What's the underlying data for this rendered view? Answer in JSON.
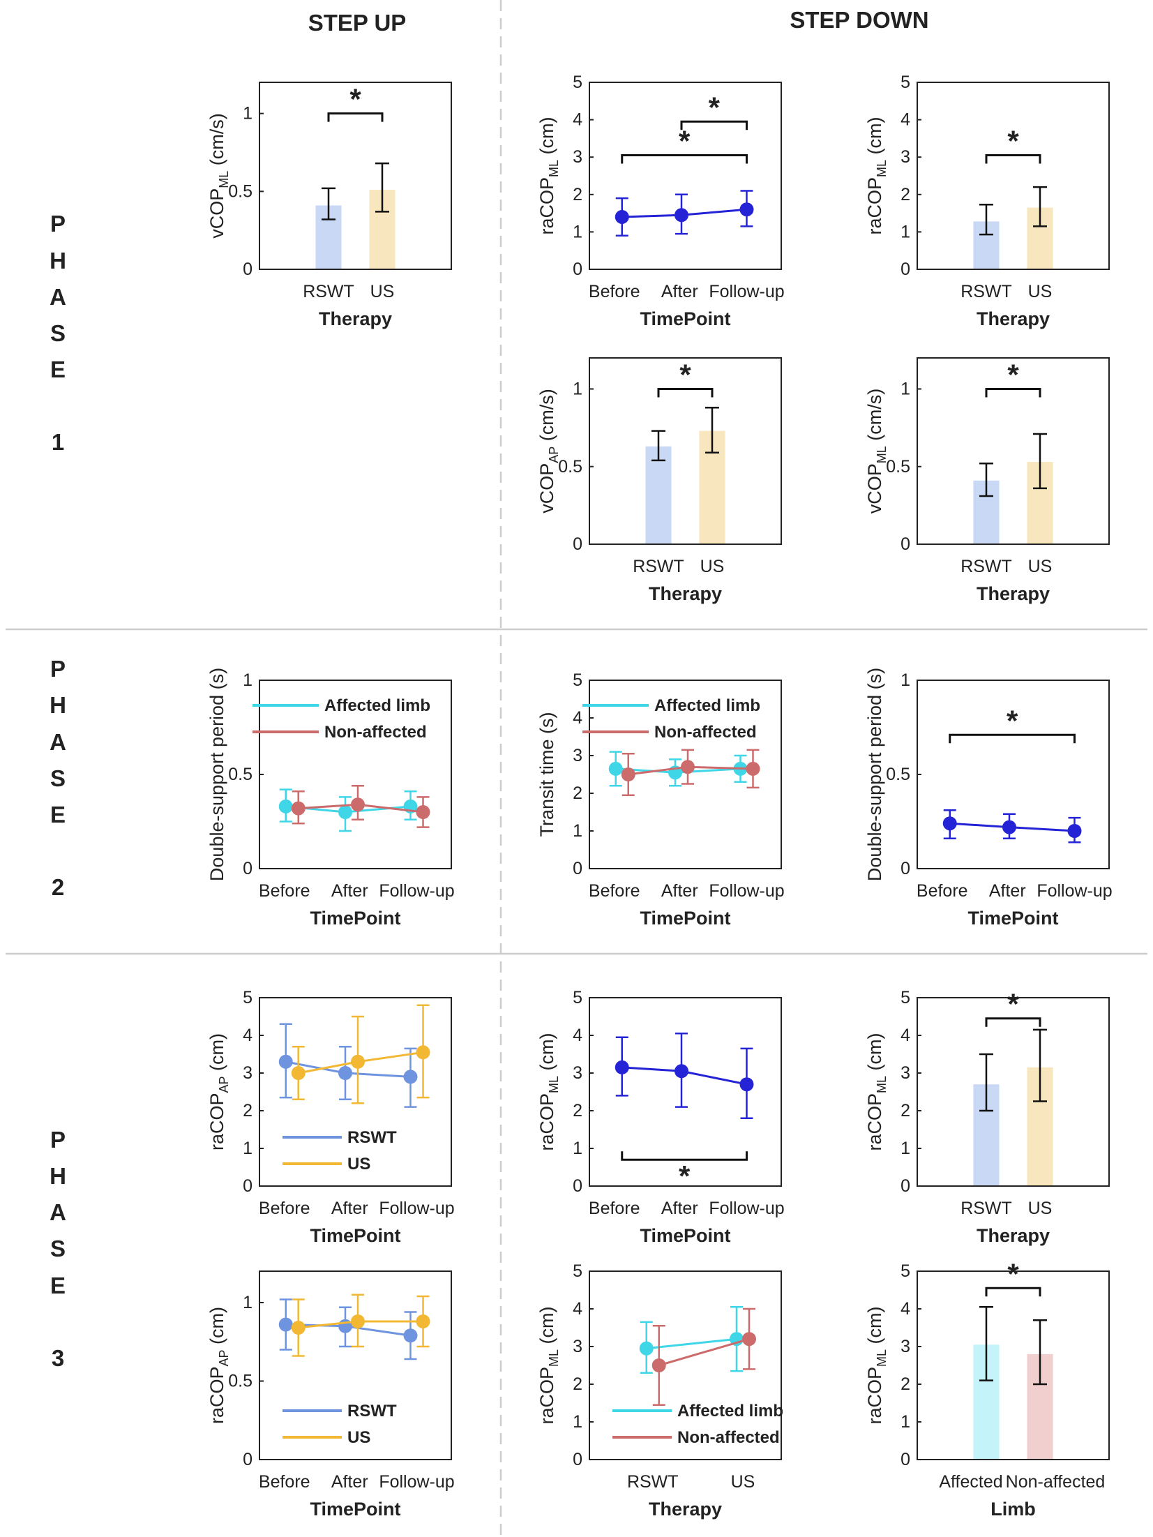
{
  "headers": {
    "step_up": "STEP UP",
    "step_down": "STEP DOWN"
  },
  "phases": [
    {
      "letters": [
        "P",
        "H",
        "A",
        "S",
        "E"
      ],
      "number": "1"
    },
    {
      "letters": [
        "P",
        "H",
        "A",
        "S",
        "E"
      ],
      "number": "2"
    },
    {
      "letters": [
        "P",
        "H",
        "A",
        "S",
        "E"
      ],
      "number": "3"
    }
  ],
  "colors": {
    "rswt_bar": "#c9d9f5",
    "us_bar": "#f8e6be",
    "affected_bar": "#c4f4f9",
    "nonaffected_bar": "#f2cfcf",
    "dark_blue": "#2424d6",
    "cyan": "#3fd6e8",
    "red": "#cc6b6b",
    "light_blue": "#6e94e0",
    "gold": "#f2b833",
    "axis": "#222222",
    "separator": "#cccccc"
  },
  "chart_data": [
    {
      "id": "p1-up-vcopml",
      "type": "bar",
      "ylabel": "vCOP",
      "ylabel_sub": "ML",
      "ylabel_unit": " (cm/s)",
      "xlabel": "Therapy",
      "ylim": [
        0,
        1.2
      ],
      "yticks": [
        0,
        0.5,
        1
      ],
      "categories": [
        "RSWT",
        "US"
      ],
      "values": [
        0.41,
        0.51
      ],
      "err_low": [
        0.32,
        0.37
      ],
      "err_high": [
        0.52,
        0.68
      ],
      "bar_colors": [
        "rswt_bar",
        "us_bar"
      ],
      "sig": [
        {
          "from": 0,
          "to": 1,
          "y": 1.0,
          "dir": "down",
          "label": "*"
        }
      ]
    },
    {
      "id": "p1-down-racopml-time",
      "type": "line",
      "ylabel": "raCOP",
      "ylabel_sub": "ML",
      "ylabel_unit": " (cm)",
      "xlabel": "TimePoint",
      "ylim": [
        0,
        5
      ],
      "yticks": [
        0,
        1,
        2,
        3,
        4,
        5
      ],
      "categories": [
        "Before",
        "After",
        "Follow-up"
      ],
      "series": [
        {
          "name": "",
          "color": "dark_blue",
          "values": [
            1.4,
            1.45,
            1.6
          ],
          "err_low": [
            0.9,
            0.95,
            1.15
          ],
          "err_high": [
            1.9,
            2.0,
            2.1
          ]
        }
      ],
      "sig": [
        {
          "from": 0,
          "to": 2,
          "y": 3.05,
          "dir": "down",
          "label": "*"
        },
        {
          "from": 1,
          "to": 2,
          "y": 3.95,
          "dir": "down",
          "label": "*"
        }
      ]
    },
    {
      "id": "p1-down-racopml-therapy",
      "type": "bar",
      "ylabel": "raCOP",
      "ylabel_sub": "ML",
      "ylabel_unit": " (cm)",
      "xlabel": "Therapy",
      "ylim": [
        0,
        5
      ],
      "yticks": [
        0,
        1,
        2,
        3,
        4,
        5
      ],
      "categories": [
        "RSWT",
        "US"
      ],
      "values": [
        1.28,
        1.65
      ],
      "err_low": [
        0.93,
        1.15
      ],
      "err_high": [
        1.73,
        2.2
      ],
      "bar_colors": [
        "rswt_bar",
        "us_bar"
      ],
      "sig": [
        {
          "from": 0,
          "to": 1,
          "y": 3.05,
          "dir": "down",
          "label": "*"
        }
      ]
    },
    {
      "id": "p1-down-vcopap",
      "type": "bar",
      "ylabel": "vCOP",
      "ylabel_sub": "AP",
      "ylabel_unit": " (cm/s)",
      "xlabel": "Therapy",
      "ylim": [
        0,
        1.2
      ],
      "yticks": [
        0,
        0.5,
        1
      ],
      "categories": [
        "RSWT",
        "US"
      ],
      "values": [
        0.63,
        0.73
      ],
      "err_low": [
        0.54,
        0.59
      ],
      "err_high": [
        0.73,
        0.88
      ],
      "bar_colors": [
        "rswt_bar",
        "us_bar"
      ],
      "sig": [
        {
          "from": 0,
          "to": 1,
          "y": 1.0,
          "dir": "down",
          "label": "*"
        }
      ]
    },
    {
      "id": "p1-down-vcopml",
      "type": "bar",
      "ylabel": "vCOP",
      "ylabel_sub": "ML",
      "ylabel_unit": " (cm/s)",
      "xlabel": "Therapy",
      "ylim": [
        0,
        1.2
      ],
      "yticks": [
        0,
        0.5,
        1
      ],
      "categories": [
        "RSWT",
        "US"
      ],
      "values": [
        0.41,
        0.53
      ],
      "err_low": [
        0.31,
        0.36
      ],
      "err_high": [
        0.52,
        0.71
      ],
      "bar_colors": [
        "rswt_bar",
        "us_bar"
      ],
      "sig": [
        {
          "from": 0,
          "to": 1,
          "y": 1.0,
          "dir": "down",
          "label": "*"
        }
      ]
    },
    {
      "id": "p2-up-dsp",
      "type": "line",
      "ylabel": "Double-support period (s)",
      "ylabel_sub": "",
      "ylabel_unit": "",
      "xlabel": "TimePoint",
      "ylim": [
        0,
        1
      ],
      "yticks": [
        0,
        0.5,
        1
      ],
      "categories": [
        "Before",
        "After",
        "Follow-up"
      ],
      "legend": {
        "position": "top-right",
        "entries": [
          "Affected limb",
          "Non-affected"
        ],
        "colors": [
          "cyan",
          "red"
        ]
      },
      "series": [
        {
          "name": "Affected limb",
          "color": "cyan",
          "values": [
            0.33,
            0.3,
            0.33
          ],
          "err_low": [
            0.25,
            0.2,
            0.26
          ],
          "err_high": [
            0.42,
            0.38,
            0.41
          ]
        },
        {
          "name": "Non-affected",
          "color": "red",
          "values": [
            0.32,
            0.34,
            0.3
          ],
          "err_low": [
            0.24,
            0.26,
            0.22
          ],
          "err_high": [
            0.41,
            0.44,
            0.38
          ]
        }
      ],
      "sig": []
    },
    {
      "id": "p2-down-transit",
      "type": "line",
      "ylabel": "Transit time (s)",
      "ylabel_sub": "",
      "ylabel_unit": "",
      "xlabel": "TimePoint",
      "ylim": [
        0,
        5
      ],
      "yticks": [
        0,
        1,
        2,
        3,
        4,
        5
      ],
      "categories": [
        "Before",
        "After",
        "Follow-up"
      ],
      "legend": {
        "position": "top-right",
        "entries": [
          "Affected limb",
          "Non-affected"
        ],
        "colors": [
          "cyan",
          "red"
        ]
      },
      "series": [
        {
          "name": "Affected limb",
          "color": "cyan",
          "values": [
            2.65,
            2.55,
            2.65
          ],
          "err_low": [
            2.2,
            2.2,
            2.3
          ],
          "err_high": [
            3.1,
            2.9,
            3.0
          ]
        },
        {
          "name": "Non-affected",
          "color": "red",
          "values": [
            2.5,
            2.7,
            2.65
          ],
          "err_low": [
            1.95,
            2.25,
            2.15
          ],
          "err_high": [
            3.05,
            3.15,
            3.15
          ]
        }
      ],
      "sig": []
    },
    {
      "id": "p2-down-dsp",
      "type": "line",
      "ylabel": "Double-support period (s)",
      "ylabel_sub": "",
      "ylabel_unit": "",
      "xlabel": "TimePoint",
      "ylim": [
        0,
        1
      ],
      "yticks": [
        0,
        0.5,
        1
      ],
      "categories": [
        "Before",
        "After",
        "Follow-up"
      ],
      "series": [
        {
          "name": "",
          "color": "dark_blue",
          "values": [
            0.24,
            0.22,
            0.2
          ],
          "err_low": [
            0.16,
            0.16,
            0.14
          ],
          "err_high": [
            0.31,
            0.29,
            0.27
          ]
        }
      ],
      "sig": [
        {
          "from": 0,
          "to": 2,
          "y": 0.71,
          "dir": "down",
          "label": "*"
        }
      ]
    },
    {
      "id": "p3-up-racopap-time",
      "type": "line",
      "ylabel": "raCOP",
      "ylabel_sub": "AP",
      "ylabel_unit": " (cm)",
      "xlabel": "TimePoint",
      "ylim": [
        0,
        5
      ],
      "yticks": [
        0,
        1,
        2,
        3,
        4,
        5
      ],
      "categories": [
        "Before",
        "After",
        "Follow-up"
      ],
      "legend": {
        "position": "bottom-center",
        "entries": [
          "RSWT",
          "US"
        ],
        "colors": [
          "light_blue",
          "gold"
        ]
      },
      "series": [
        {
          "name": "RSWT",
          "color": "light_blue",
          "values": [
            3.3,
            3.0,
            2.9
          ],
          "err_low": [
            2.35,
            2.3,
            2.1
          ],
          "err_high": [
            4.3,
            3.7,
            3.65
          ]
        },
        {
          "name": "US",
          "color": "gold",
          "values": [
            3.0,
            3.3,
            3.55
          ],
          "err_low": [
            2.3,
            2.2,
            2.35
          ],
          "err_high": [
            3.7,
            4.5,
            4.8
          ]
        }
      ],
      "sig": []
    },
    {
      "id": "p3-down-racopml-time",
      "type": "line",
      "ylabel": "raCOP",
      "ylabel_sub": "ML",
      "ylabel_unit": " (cm)",
      "xlabel": "TimePoint",
      "ylim": [
        0,
        5
      ],
      "yticks": [
        0,
        1,
        2,
        3,
        4,
        5
      ],
      "categories": [
        "Before",
        "After",
        "Follow-up"
      ],
      "series": [
        {
          "name": "",
          "color": "dark_blue",
          "values": [
            3.15,
            3.05,
            2.7
          ],
          "err_low": [
            2.4,
            2.1,
            1.8
          ],
          "err_high": [
            3.95,
            4.05,
            3.65
          ]
        }
      ],
      "sig": [
        {
          "from": 0,
          "to": 2,
          "y": 0.7,
          "dir": "up",
          "label": "*"
        }
      ]
    },
    {
      "id": "p3-down-racopml-therapy",
      "type": "bar",
      "ylabel": "raCOP",
      "ylabel_sub": "ML",
      "ylabel_unit": " (cm)",
      "xlabel": "Therapy",
      "ylim": [
        0,
        5
      ],
      "yticks": [
        0,
        1,
        2,
        3,
        4,
        5
      ],
      "categories": [
        "RSWT",
        "US"
      ],
      "values": [
        2.7,
        3.15
      ],
      "err_low": [
        2.0,
        2.25
      ],
      "err_high": [
        3.5,
        4.15
      ],
      "bar_colors": [
        "rswt_bar",
        "us_bar"
      ],
      "sig": [
        {
          "from": 0,
          "to": 1,
          "y": 4.45,
          "dir": "down",
          "label": "*"
        }
      ]
    },
    {
      "id": "p3-up-racopap-time2",
      "type": "line",
      "ylabel": "raCOP",
      "ylabel_sub": "AP",
      "ylabel_unit": " (cm)",
      "xlabel": "TimePoint",
      "ylim": [
        0,
        1.2
      ],
      "yticks": [
        0,
        0.5,
        1
      ],
      "categories": [
        "Before",
        "After",
        "Follow-up"
      ],
      "legend": {
        "position": "bottom-center",
        "entries": [
          "RSWT",
          "US"
        ],
        "colors": [
          "light_blue",
          "gold"
        ]
      },
      "series": [
        {
          "name": "RSWT",
          "color": "light_blue",
          "values": [
            0.86,
            0.85,
            0.79
          ],
          "err_low": [
            0.7,
            0.72,
            0.64
          ],
          "err_high": [
            1.02,
            0.97,
            0.94
          ]
        },
        {
          "name": "US",
          "color": "gold",
          "values": [
            0.84,
            0.88,
            0.88
          ],
          "err_low": [
            0.66,
            0.72,
            0.72
          ],
          "err_high": [
            1.02,
            1.05,
            1.04
          ]
        }
      ],
      "sig": []
    },
    {
      "id": "p3-down-racopml-therapy-limb",
      "type": "line",
      "ylabel": "raCOP",
      "ylabel_sub": "ML",
      "ylabel_unit": " (cm)",
      "xlabel": "Therapy",
      "ylim": [
        0,
        5
      ],
      "yticks": [
        0,
        1,
        2,
        3,
        4,
        5
      ],
      "categories": [
        "RSWT",
        "US"
      ],
      "legend": {
        "position": "bottom-center",
        "entries": [
          "Affected limb",
          "Non-affected"
        ],
        "colors": [
          "cyan",
          "red"
        ]
      },
      "series": [
        {
          "name": "Affected limb",
          "color": "cyan",
          "values": [
            2.95,
            3.2
          ],
          "err_low": [
            2.3,
            2.35
          ],
          "err_high": [
            3.65,
            4.05
          ]
        },
        {
          "name": "Non-affected",
          "color": "red",
          "values": [
            2.5,
            3.2
          ],
          "err_low": [
            1.45,
            2.4
          ],
          "err_high": [
            3.55,
            4.0
          ]
        }
      ],
      "sig": []
    },
    {
      "id": "p3-down-racopml-limb",
      "type": "bar",
      "ylabel": "raCOP",
      "ylabel_sub": "ML",
      "ylabel_unit": " (cm)",
      "xlabel": "Limb",
      "ylim": [
        0,
        5
      ],
      "yticks": [
        0,
        1,
        2,
        3,
        4,
        5
      ],
      "categories": [
        "Affected",
        "Non-affected"
      ],
      "values": [
        3.05,
        2.8
      ],
      "err_low": [
        2.1,
        2.0
      ],
      "err_high": [
        4.05,
        3.7
      ],
      "bar_colors": [
        "affected_bar",
        "nonaffected_bar"
      ],
      "sig": [
        {
          "from": 0,
          "to": 1,
          "y": 4.55,
          "dir": "down",
          "label": "*"
        }
      ]
    }
  ]
}
